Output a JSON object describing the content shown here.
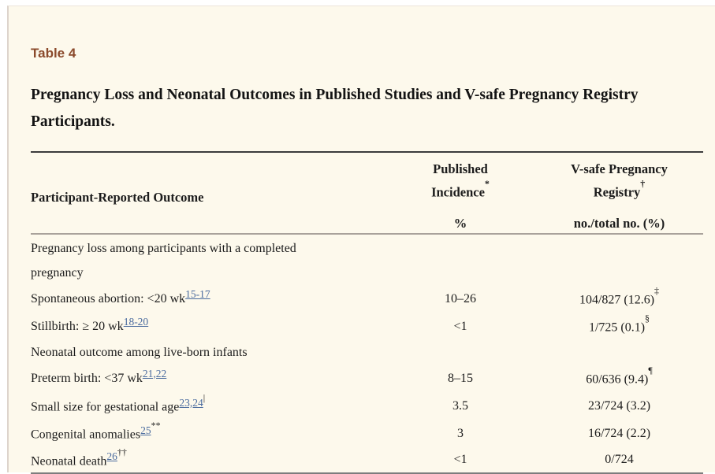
{
  "colors": {
    "panel_background": "#fdf9ec",
    "table_label_accent": "#8b4a2b",
    "reference_link": "#4a6b9e"
  },
  "table_label": "Table 4",
  "title_lines": [
    "Pregnancy Loss and Neonatal Outcomes in Published Studies and V-safe Pregnancy Registry",
    "Participants."
  ],
  "header": {
    "outcome_col": "Participant-Reported Outcome",
    "published_line1": "Published",
    "published_line2": "Incidence",
    "published_marker": "*",
    "published_unit": "%",
    "vsafe_line1": "V-safe Pregnancy",
    "vsafe_line2": "Registry",
    "vsafe_marker": "†",
    "vsafe_unit": "no./total no. (%)"
  },
  "rows": [
    {
      "type": "section",
      "lines": [
        "Pregnancy loss among participants with a completed",
        "pregnancy"
      ]
    },
    {
      "type": "data",
      "label": "Spontaneous abortion: <20 wk",
      "ref": "15-17",
      "label_marker": "",
      "published": "10–26",
      "vsafe": "104/827 (12.6)",
      "vsafe_marker": "‡"
    },
    {
      "type": "data",
      "label": "Stillbirth: ≥ 20 wk",
      "ref": "18-20",
      "label_marker": "",
      "published": "<1",
      "vsafe": "1/725 (0.1)",
      "vsafe_marker": "§"
    },
    {
      "type": "section",
      "lines": [
        "Neonatal outcome among live-born infants"
      ]
    },
    {
      "type": "data",
      "label": "Preterm birth: <37 wk",
      "ref": "21,22",
      "label_marker": "",
      "published": "8–15",
      "vsafe": "60/636 (9.4)",
      "vsafe_marker": "¶"
    },
    {
      "type": "data",
      "label": "Small size for gestational age",
      "ref": "23,24",
      "label_marker": "|",
      "published": "3.5",
      "vsafe": "23/724 (3.2)",
      "vsafe_marker": ""
    },
    {
      "type": "data",
      "label": "Congenital anomalies",
      "ref": "25",
      "label_marker": "**",
      "published": "3",
      "vsafe": "16/724 (2.2)",
      "vsafe_marker": ""
    },
    {
      "type": "data",
      "label": "Neonatal death",
      "ref": "26",
      "label_marker": "††",
      "published": "<1",
      "vsafe": "0/724",
      "vsafe_marker": ""
    }
  ]
}
